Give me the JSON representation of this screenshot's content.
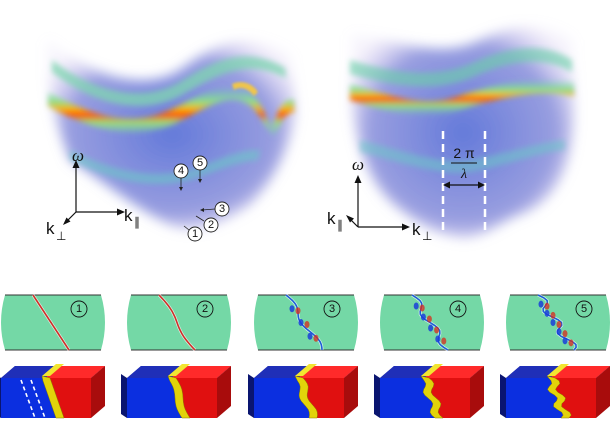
{
  "panels": {
    "left": {
      "axis_omega": "ω",
      "axis_k_parallel": "k",
      "axis_k_parallel_sub": "∥",
      "axis_k_perp": "k",
      "axis_k_perp_sub": "⊥",
      "markers": [
        "1",
        "2",
        "3",
        "4",
        "5"
      ]
    },
    "right": {
      "axis_omega": "ω",
      "axis_k_parallel": "k",
      "axis_k_parallel_sub": "∥",
      "axis_k_perp": "k",
      "axis_k_perp_sub": "⊥",
      "period_numerator": "2 π",
      "period_denominator": "λ"
    }
  },
  "modes": [
    {
      "label": "1"
    },
    {
      "label": "2"
    },
    {
      "label": "3"
    },
    {
      "label": "4"
    },
    {
      "label": "5"
    }
  ],
  "colors": {
    "field_bg": "#74d8a6",
    "left_domain": "#0b2fe0",
    "right_domain": "#e01010",
    "wall": "#e2d30a",
    "band_hot": "#ff6a00",
    "band_mid": "#54b8c8",
    "spectrum_base": "#6a74d8"
  }
}
